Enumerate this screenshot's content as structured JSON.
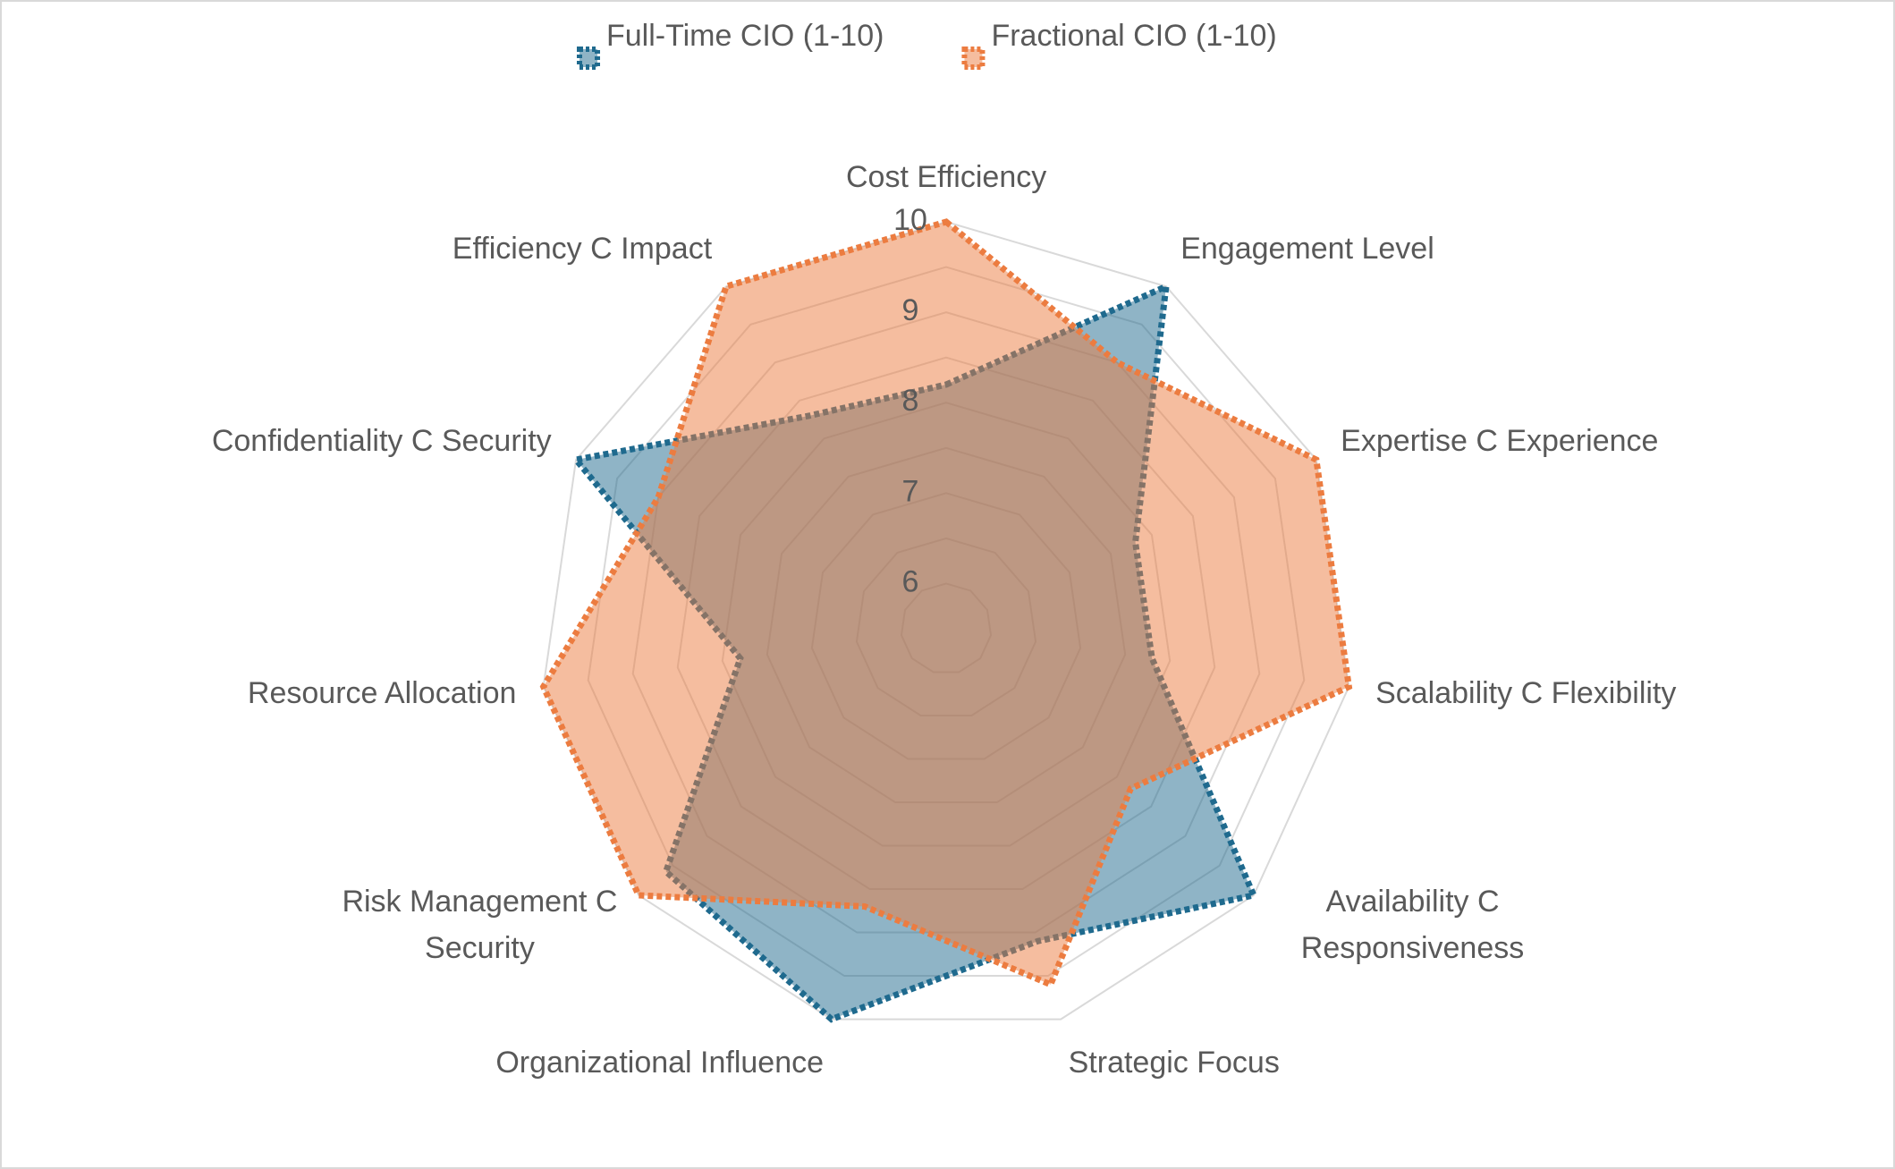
{
  "chart_data": {
    "type": "radar",
    "categories": [
      "Cost Efficiency",
      "Engagement Level",
      "Expertise C Experience",
      "Scalability C Flexibility",
      "Availability C Responsiveness",
      "Strategic Focus",
      "Organizational Influence",
      "Risk Management C Security",
      "Resource Allocation",
      "Confidentiality C Security",
      "Efficiency C Impact"
    ],
    "series": [
      {
        "name": "Full-Time CIO (1-10)",
        "color": "#1f6a8e",
        "values": [
          8.2,
          10,
          7.8,
          7.8,
          10,
          9.1,
          10,
          9.6,
          7.8,
          10,
          8.3
        ]
      },
      {
        "name": "Fractional CIO (1-10)",
        "color": "#ec7c40",
        "values": [
          10,
          9,
          10,
          10,
          8.2,
          9.6,
          8.7,
          10,
          10,
          9,
          10
        ]
      }
    ],
    "ylim": [
      5.5,
      10
    ],
    "yticks": [
      6,
      7,
      8,
      9,
      10
    ],
    "minor_yticks": [
      6.5,
      7.5,
      8.5,
      9.5
    ],
    "grid": true,
    "legend": "top"
  }
}
